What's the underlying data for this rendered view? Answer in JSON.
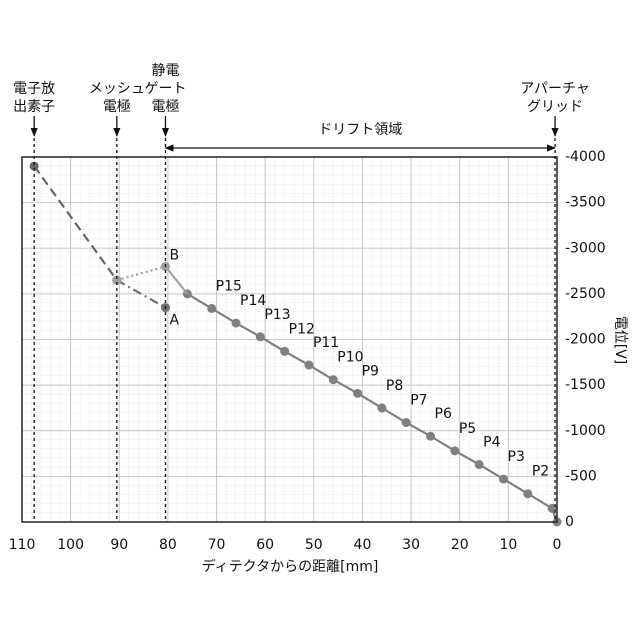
{
  "chart_data": {
    "type": "line",
    "xlabel": "ディテクタからの距離[mm]",
    "ylabel": "電位[V]",
    "xlim": [
      110,
      0
    ],
    "xticks": [
      110,
      100,
      90,
      80,
      70,
      60,
      50,
      40,
      30,
      20,
      10,
      0
    ],
    "ylim": [
      0,
      -4000
    ],
    "yticks": [
      0,
      -500,
      -1000,
      -1500,
      -2000,
      -2500,
      -3000,
      -3500,
      -4000
    ],
    "grid": true,
    "series": [
      {
        "style": "solid",
        "color": "#808080",
        "markers": true,
        "x": [
          76,
          71,
          66,
          61,
          56,
          51,
          46,
          41,
          36,
          31,
          26,
          21,
          16,
          11,
          6,
          1,
          0
        ],
        "values": [
          -2500,
          -2340,
          -2180,
          -2030,
          -1870,
          -1720,
          -1560,
          -1410,
          -1250,
          -1090,
          -940,
          -780,
          -630,
          -470,
          -310,
          -150,
          0
        ],
        "point_labels": [
          null,
          "P15",
          "P14",
          "P13",
          "P12",
          "P11",
          "P10",
          "P9",
          "P8",
          "P7",
          "P6",
          "P5",
          "P4",
          "P3",
          "P2",
          null,
          null
        ]
      },
      {
        "style": "dashed",
        "color": "#666666",
        "markers": true,
        "x": [
          107.5,
          90.5
        ],
        "values": [
          -3900,
          -2650
        ],
        "point_labels": [
          null,
          null
        ]
      },
      {
        "style": "dashdot",
        "color": "#707070",
        "markers": true,
        "x": [
          90.5,
          80.5
        ],
        "values": [
          -2650,
          -2350
        ],
        "point_labels": [
          null,
          "A"
        ]
      },
      {
        "style": "dotted",
        "color": "#a0a0a0",
        "markers": true,
        "x": [
          90.5,
          80.5
        ],
        "values": [
          -2650,
          -2800
        ],
        "point_labels": [
          null,
          "B"
        ]
      },
      {
        "style": "solid",
        "color": "#a0a0a0",
        "markers": false,
        "x": [
          80.5,
          76
        ],
        "values": [
          -2800,
          -2500
        ],
        "point_labels": [
          null,
          null
        ]
      }
    ],
    "positions": [
      {
        "x": 107.5,
        "lines": [
          "電子放",
          "出素子"
        ]
      },
      {
        "x": 90.5,
        "lines": [
          "メッシュ",
          "電極"
        ]
      },
      {
        "x": 80.5,
        "lines": [
          "静電",
          "ゲート",
          "電極"
        ]
      },
      {
        "x": 0.4,
        "lines": [
          "アパーチャ",
          "グリッド"
        ]
      }
    ],
    "region": {
      "text": "ドリフト領域",
      "x": [
        80.5,
        0.4
      ]
    }
  }
}
